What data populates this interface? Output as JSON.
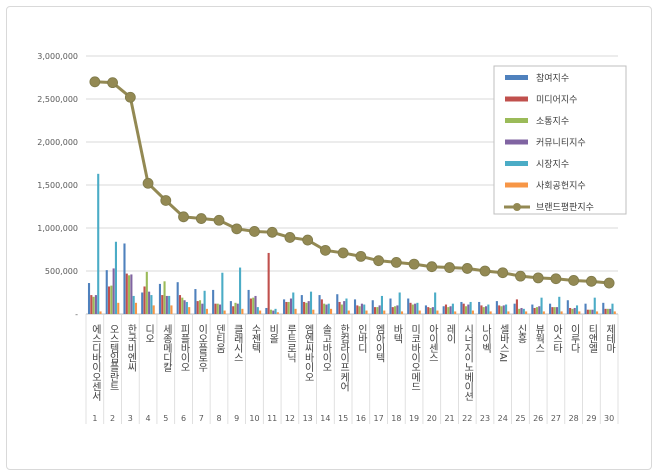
{
  "chart_data": {
    "type": "bar",
    "title": "",
    "xlabel": "",
    "ylabel": "",
    "ylim": [
      0,
      3000000
    ],
    "yticks": [
      "-",
      "500,000",
      "1,000,000",
      "1,500,000",
      "2,000,000",
      "2,500,000",
      "3,000,000"
    ],
    "ytick_values": [
      0,
      500000,
      1000000,
      1500000,
      2000000,
      2500000,
      3000000
    ],
    "grid": true,
    "legend_position": "right",
    "categories": [
      "에스디바이오센서",
      "오스템임플란트",
      "한국비엔씨",
      "디오",
      "세종메디칼",
      "피플바이오",
      "이오플로우",
      "덴티움",
      "클래시스",
      "수젠텍",
      "비올",
      "루트로닉",
      "엠엔씨바이오",
      "솔고바이오",
      "한컴라이프케어",
      "인바디",
      "엠아이텍",
      "바텍",
      "미코바이오메드",
      "아이센스",
      "레이",
      "시너지이노베이션",
      "나이벡",
      "셀바스AI",
      "신흥",
      "뷰웍스",
      "아스타",
      "이루다",
      "티앤엘",
      "제테마"
    ],
    "numbers": [
      "1",
      "2",
      "3",
      "4",
      "5",
      "6",
      "7",
      "8",
      "9",
      "10",
      "11",
      "12",
      "13",
      "14",
      "15",
      "16",
      "17",
      "18",
      "19",
      "20",
      "21",
      "22",
      "23",
      "24",
      "25",
      "26",
      "27",
      "28",
      "29",
      "30"
    ],
    "series": [
      {
        "name": "참여지수",
        "color": "#4f81bd",
        "values": [
          360000,
          510000,
          820000,
          250000,
          350000,
          370000,
          290000,
          280000,
          150000,
          280000,
          70000,
          170000,
          220000,
          220000,
          230000,
          170000,
          160000,
          180000,
          180000,
          100000,
          90000,
          140000,
          140000,
          150000,
          120000,
          110000,
          120000,
          160000,
          120000,
          130000
        ]
      },
      {
        "name": "미디어지수",
        "color": "#c0504d",
        "values": [
          220000,
          320000,
          470000,
          320000,
          220000,
          220000,
          150000,
          120000,
          90000,
          180000,
          710000,
          140000,
          140000,
          170000,
          140000,
          100000,
          80000,
          80000,
          130000,
          80000,
          110000,
          120000,
          100000,
          100000,
          170000,
          70000,
          80000,
          70000,
          50000,
          60000
        ]
      },
      {
        "name": "소통지수",
        "color": "#9bbb59",
        "values": [
          200000,
          330000,
          450000,
          490000,
          380000,
          190000,
          160000,
          120000,
          130000,
          190000,
          50000,
          140000,
          130000,
          120000,
          110000,
          90000,
          80000,
          90000,
          110000,
          70000,
          80000,
          90000,
          80000,
          90000,
          60000,
          80000,
          80000,
          60000,
          50000,
          60000
        ]
      },
      {
        "name": "커뮤니티지수",
        "color": "#8064a2",
        "values": [
          220000,
          530000,
          460000,
          260000,
          210000,
          160000,
          120000,
          110000,
          120000,
          210000,
          40000,
          180000,
          150000,
          110000,
          150000,
          120000,
          100000,
          100000,
          120000,
          80000,
          90000,
          110000,
          90000,
          100000,
          70000,
          90000,
          80000,
          70000,
          50000,
          60000
        ]
      },
      {
        "name": "시장지수",
        "color": "#4bacc6",
        "values": [
          1630000,
          840000,
          210000,
          220000,
          210000,
          140000,
          270000,
          480000,
          540000,
          80000,
          60000,
          250000,
          260000,
          120000,
          180000,
          110000,
          210000,
          250000,
          130000,
          250000,
          120000,
          140000,
          110000,
          110000,
          60000,
          190000,
          200000,
          100000,
          190000,
          120000
        ]
      },
      {
        "name": "사회공헌지수",
        "color": "#f79646",
        "values": [
          30000,
          130000,
          130000,
          100000,
          100000,
          80000,
          60000,
          40000,
          60000,
          40000,
          20000,
          60000,
          50000,
          60000,
          40000,
          40000,
          40000,
          30000,
          40000,
          40000,
          30000,
          40000,
          30000,
          30000,
          30000,
          30000,
          30000,
          30000,
          30000,
          30000
        ]
      }
    ],
    "line_series": {
      "name": "브랜드평판지수",
      "color": "#938953",
      "values": [
        2700000,
        2690000,
        2520000,
        1520000,
        1320000,
        1130000,
        1110000,
        1090000,
        990000,
        960000,
        950000,
        890000,
        860000,
        740000,
        710000,
        670000,
        620000,
        600000,
        580000,
        550000,
        540000,
        530000,
        500000,
        480000,
        440000,
        420000,
        410000,
        390000,
        380000,
        360000
      ]
    }
  }
}
